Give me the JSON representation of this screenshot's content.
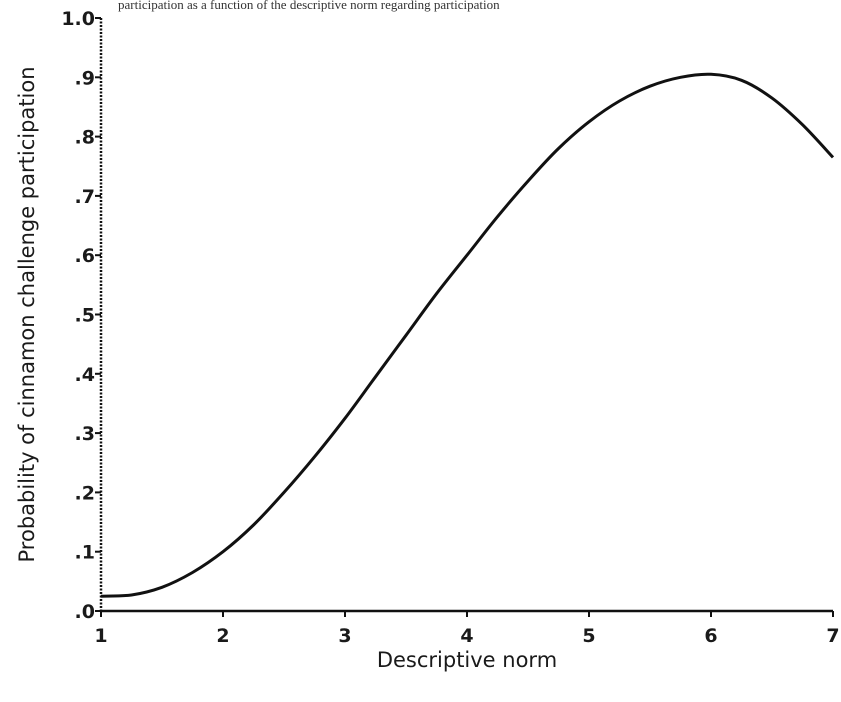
{
  "caption": "participation as a function of the descriptive norm regarding participation",
  "chart_data": {
    "type": "line",
    "title": "",
    "xlabel": "Descriptive norm",
    "ylabel": "Probability of cinnamon challenge participation",
    "xlim": [
      1,
      7
    ],
    "ylim": [
      0,
      1.0
    ],
    "x_ticks": [
      "1",
      "2",
      "3",
      "4",
      "5",
      "6",
      "7"
    ],
    "y_ticks": [
      ".0",
      ".1",
      ".2",
      ".3",
      ".4",
      ".5",
      ".6",
      ".7",
      ".8",
      ".9",
      "1.0"
    ],
    "grid": false,
    "legend": "none",
    "series": [
      {
        "x": [
          1.0,
          1.25,
          1.5,
          1.75,
          2.0,
          2.25,
          2.5,
          2.75,
          3.0,
          3.25,
          3.5,
          3.75,
          4.0,
          4.25,
          4.5,
          4.75,
          5.0,
          5.25,
          5.5,
          5.75,
          6.0,
          6.25,
          6.5,
          6.75,
          7.0
        ],
        "y": [
          0.025,
          0.027,
          0.04,
          0.065,
          0.1,
          0.145,
          0.2,
          0.26,
          0.325,
          0.395,
          0.465,
          0.535,
          0.6,
          0.665,
          0.725,
          0.78,
          0.825,
          0.86,
          0.885,
          0.9,
          0.905,
          0.895,
          0.865,
          0.82,
          0.765
        ]
      }
    ]
  }
}
